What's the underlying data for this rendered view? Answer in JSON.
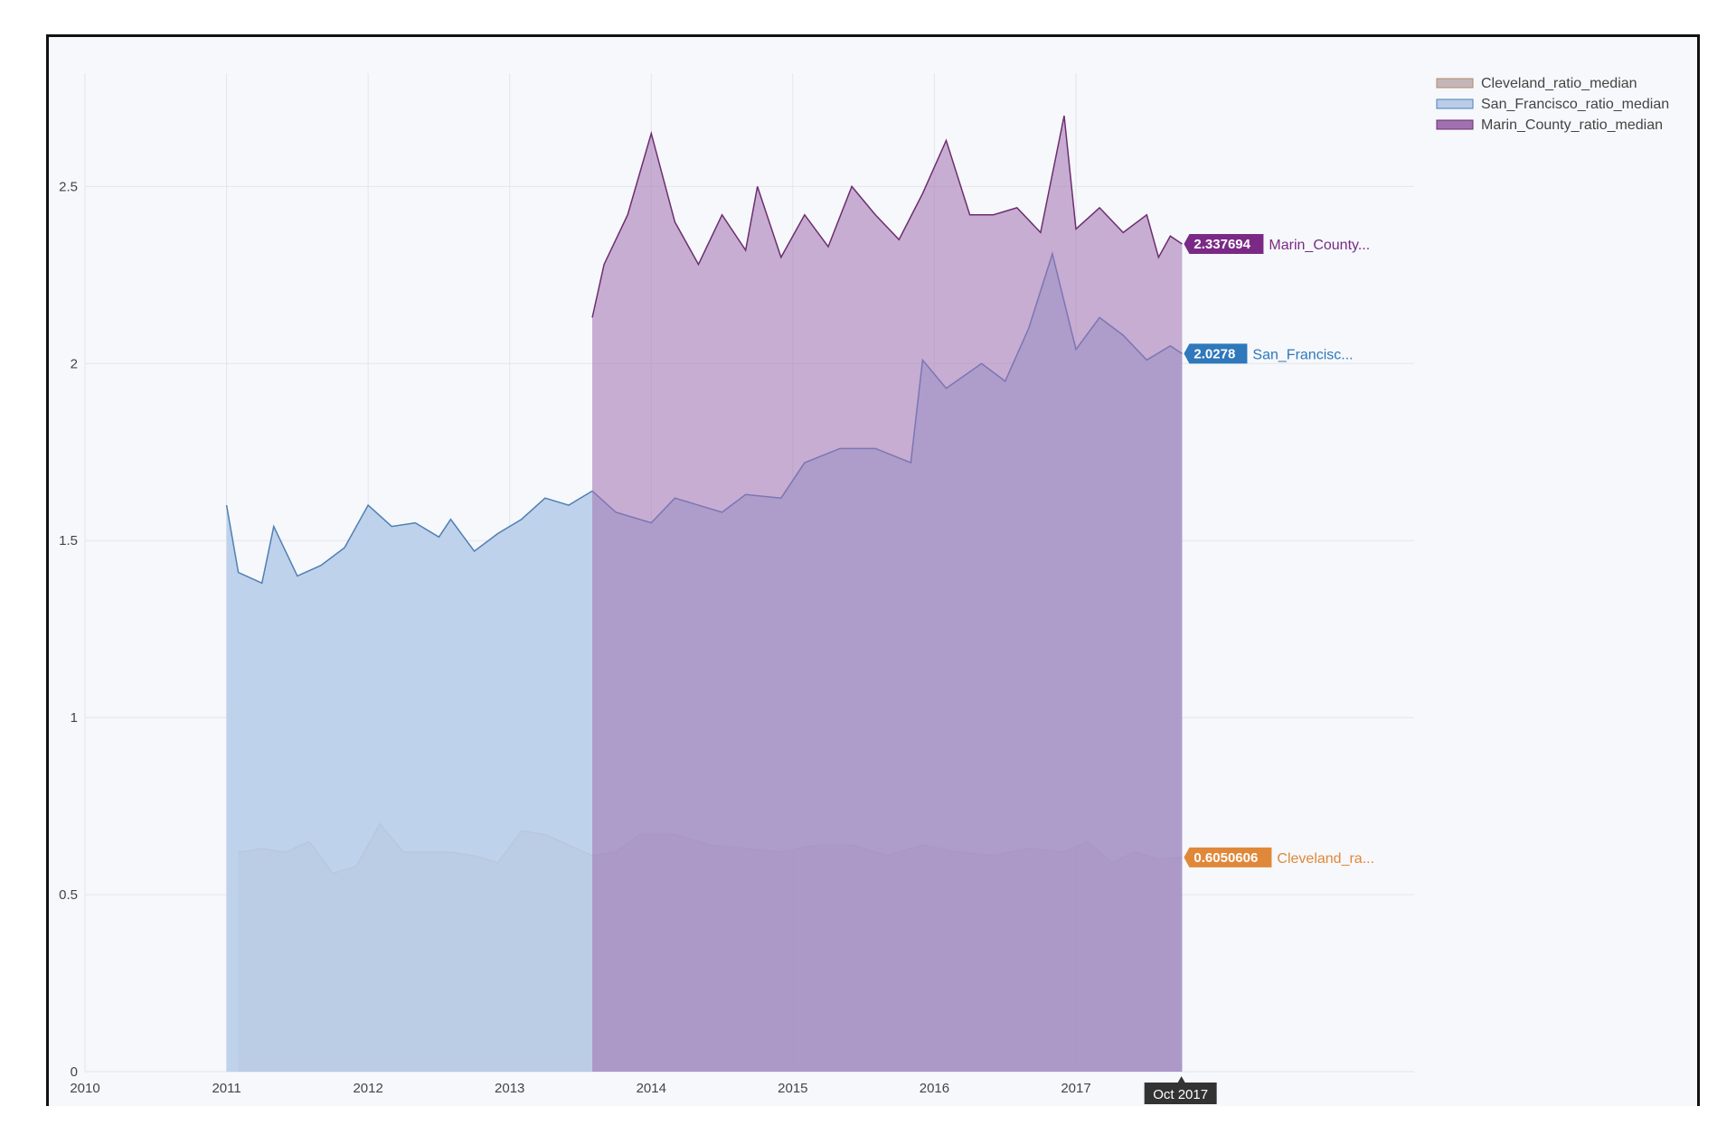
{
  "chart_data": {
    "type": "area",
    "title": "",
    "xlabel": "",
    "ylabel": "",
    "xlim": [
      "2010-01-01",
      "2017-10-31"
    ],
    "ylim": [
      0,
      2.82
    ],
    "x_ticks": [
      "2010",
      "2011",
      "2012",
      "2013",
      "2014",
      "2015",
      "2016",
      "2017"
    ],
    "y_ticks": [
      "0",
      "0.5",
      "1",
      "1.5",
      "2",
      "2.5"
    ],
    "grid": true,
    "legend_position": "top-right",
    "hover_x_label": "Oct 2017",
    "series": [
      {
        "name": "Cleveland_ratio_median",
        "line_color": "#b08b6e",
        "fill_color": "#c4b6b8",
        "hover_value": "0.6050606",
        "hover_label": "Cleveland_ra...",
        "hover_color": "#e0883a",
        "points": [
          [
            "2011-02",
            0.62
          ],
          [
            "2011-04",
            0.63
          ],
          [
            "2011-06",
            0.62
          ],
          [
            "2011-08",
            0.65
          ],
          [
            "2011-10",
            0.56
          ],
          [
            "2011-12",
            0.58
          ],
          [
            "2012-02",
            0.7
          ],
          [
            "2012-04",
            0.62
          ],
          [
            "2012-06",
            0.62
          ],
          [
            "2012-08",
            0.62
          ],
          [
            "2012-10",
            0.61
          ],
          [
            "2012-12",
            0.59
          ],
          [
            "2013-02",
            0.68
          ],
          [
            "2013-04",
            0.67
          ],
          [
            "2013-06",
            0.64
          ],
          [
            "2013-08",
            0.61
          ],
          [
            "2013-10",
            0.62
          ],
          [
            "2013-12",
            0.67
          ],
          [
            "2014-03",
            0.67
          ],
          [
            "2014-06",
            0.64
          ],
          [
            "2014-09",
            0.63
          ],
          [
            "2014-12",
            0.62
          ],
          [
            "2015-03",
            0.64
          ],
          [
            "2015-06",
            0.64
          ],
          [
            "2015-09",
            0.61
          ],
          [
            "2015-12",
            0.64
          ],
          [
            "2016-03",
            0.62
          ],
          [
            "2016-06",
            0.61
          ],
          [
            "2016-09",
            0.63
          ],
          [
            "2016-12",
            0.62
          ],
          [
            "2017-02",
            0.65
          ],
          [
            "2017-04",
            0.59
          ],
          [
            "2017-06",
            0.62
          ],
          [
            "2017-08",
            0.6
          ],
          [
            "2017-10",
            0.605
          ]
        ]
      },
      {
        "name": "San_Francisco_ratio_median",
        "line_color": "#4f7fb5",
        "fill_color": "#b9cde9",
        "hover_value": "2.0278",
        "hover_label": "San_Francisc...",
        "hover_color": "#2e78bb",
        "points": [
          [
            "2011-01",
            1.6
          ],
          [
            "2011-02",
            1.41
          ],
          [
            "2011-04",
            1.38
          ],
          [
            "2011-05",
            1.54
          ],
          [
            "2011-07",
            1.4
          ],
          [
            "2011-09",
            1.43
          ],
          [
            "2011-11",
            1.48
          ],
          [
            "2012-01",
            1.6
          ],
          [
            "2012-03",
            1.54
          ],
          [
            "2012-05",
            1.55
          ],
          [
            "2012-07",
            1.51
          ],
          [
            "2012-08",
            1.56
          ],
          [
            "2012-10",
            1.47
          ],
          [
            "2012-12",
            1.52
          ],
          [
            "2013-02",
            1.56
          ],
          [
            "2013-04",
            1.62
          ],
          [
            "2013-06",
            1.6
          ],
          [
            "2013-08",
            1.64
          ],
          [
            "2013-10",
            1.58
          ],
          [
            "2014-01",
            1.55
          ],
          [
            "2014-03",
            1.62
          ],
          [
            "2014-05",
            1.6
          ],
          [
            "2014-07",
            1.58
          ],
          [
            "2014-09",
            1.63
          ],
          [
            "2014-12",
            1.62
          ],
          [
            "2015-02",
            1.72
          ],
          [
            "2015-05",
            1.76
          ],
          [
            "2015-08",
            1.76
          ],
          [
            "2015-11",
            1.72
          ],
          [
            "2015-12",
            2.01
          ],
          [
            "2016-02",
            1.93
          ],
          [
            "2016-05",
            2.0
          ],
          [
            "2016-07",
            1.95
          ],
          [
            "2016-09",
            2.1
          ],
          [
            "2016-11",
            2.31
          ],
          [
            "2017-01",
            2.04
          ],
          [
            "2017-03",
            2.13
          ],
          [
            "2017-05",
            2.08
          ],
          [
            "2017-07",
            2.01
          ],
          [
            "2017-09",
            2.05
          ],
          [
            "2017-10",
            2.0278
          ]
        ]
      },
      {
        "name": "Marin_County_ratio_median",
        "line_color": "#6d2d70",
        "fill_color": "#a070b0",
        "hover_value": "2.337694",
        "hover_label": "Marin_County...",
        "hover_color": "#7a2a86",
        "points": [
          [
            "2013-08",
            2.13
          ],
          [
            "2013-09",
            2.28
          ],
          [
            "2013-11",
            2.42
          ],
          [
            "2014-01",
            2.65
          ],
          [
            "2014-03",
            2.4
          ],
          [
            "2014-05",
            2.28
          ],
          [
            "2014-07",
            2.42
          ],
          [
            "2014-09",
            2.32
          ],
          [
            "2014-10",
            2.5
          ],
          [
            "2014-12",
            2.3
          ],
          [
            "2015-02",
            2.42
          ],
          [
            "2015-04",
            2.33
          ],
          [
            "2015-06",
            2.5
          ],
          [
            "2015-08",
            2.42
          ],
          [
            "2015-10",
            2.35
          ],
          [
            "2015-12",
            2.48
          ],
          [
            "2016-02",
            2.63
          ],
          [
            "2016-04",
            2.42
          ],
          [
            "2016-06",
            2.42
          ],
          [
            "2016-08",
            2.44
          ],
          [
            "2016-10",
            2.37
          ],
          [
            "2016-12",
            2.7
          ],
          [
            "2017-01",
            2.38
          ],
          [
            "2017-03",
            2.44
          ],
          [
            "2017-05",
            2.37
          ],
          [
            "2017-07",
            2.42
          ],
          [
            "2017-08",
            2.3
          ],
          [
            "2017-09",
            2.36
          ],
          [
            "2017-10",
            2.337694
          ]
        ]
      }
    ]
  }
}
